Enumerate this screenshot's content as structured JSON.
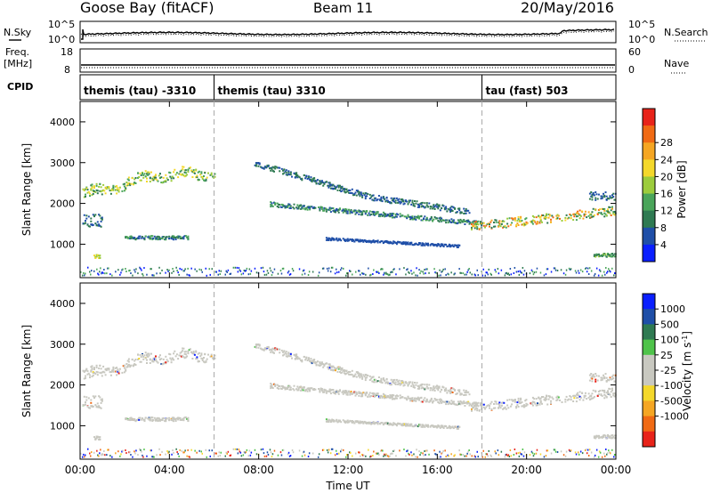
{
  "header": {
    "station": "Goose Bay (fitACF)",
    "beam": "Beam 11",
    "date": "20/May/2016"
  },
  "left_labels": {
    "nsky": "N.Sky",
    "freq_line1": "Freq.",
    "freq_line2": "[MHz]",
    "cpid": "CPID"
  },
  "right_labels": {
    "nsearch": "N.Search",
    "nave": "Nave"
  },
  "noise_axis": {
    "top": "10^5",
    "bottom": "10^0"
  },
  "freq_axis": {
    "left_top": "18",
    "left_bottom": "8",
    "right_top": "60",
    "right_bottom": "0"
  },
  "cpid_segments": [
    {
      "label": "themis (tau) -3310",
      "start_hour": 0
    },
    {
      "label": "themis (tau) 3310",
      "start_hour": 6
    },
    {
      "label": "tau (fast) 503",
      "start_hour": 18
    }
  ],
  "colors": {
    "power_scale": [
      "#0a1fff",
      "#1f4fa8",
      "#2f7a52",
      "#4aa55a",
      "#9ccc3c",
      "#f4d82b",
      "#f5a623",
      "#f06a14",
      "#e8231a"
    ],
    "velocity_scale": [
      "#e8231a",
      "#f06a14",
      "#f5a623",
      "#f4d82b",
      "#c8c8c0",
      "#c8c8c0",
      "#4fc34a",
      "#2f7a52",
      "#1f4fa8",
      "#0a1fff"
    ],
    "ground": "#c8c8c0"
  },
  "chart_data": [
    {
      "type": "heatmap",
      "name": "power",
      "ylabel": "Slant Range [km]",
      "yticks": [
        "1000",
        "2000",
        "3000",
        "4000"
      ],
      "colorbar_label": "Power [dB]",
      "colorbar_ticks": [
        "4",
        "8",
        "12",
        "16",
        "20",
        "24",
        "28"
      ],
      "colorbar_range": [
        0,
        30
      ],
      "ylim": [
        180,
        4500
      ],
      "xlim_hours": [
        0,
        24
      ]
    },
    {
      "type": "heatmap",
      "name": "velocity",
      "ylabel": "Slant Range [km]",
      "yticks": [
        "1000",
        "2000",
        "3000",
        "4000"
      ],
      "colorbar_label": "Velocity [m s^-1]",
      "colorbar_ticks": [
        "1000",
        "500",
        "100",
        "25",
        "-25",
        "-100",
        "-500",
        "-1000"
      ],
      "ylim": [
        180,
        4500
      ],
      "xlim_hours": [
        0,
        24
      ]
    }
  ],
  "xaxis": {
    "label": "Time UT",
    "ticks": [
      "00:00",
      "04:00",
      "08:00",
      "12:00",
      "16:00",
      "20:00",
      "00:00"
    ]
  }
}
